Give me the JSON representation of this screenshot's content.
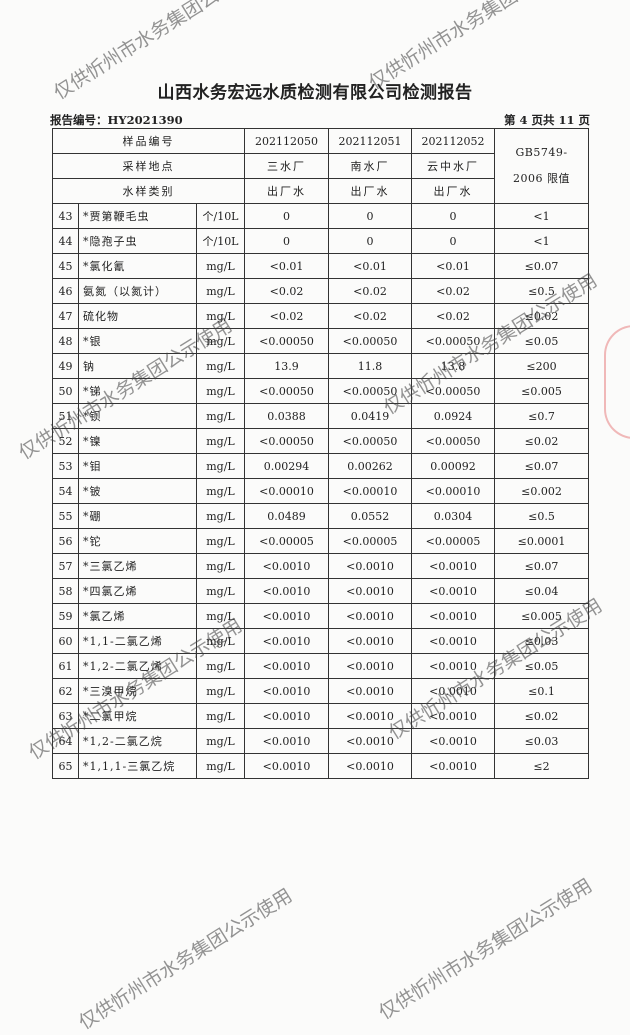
{
  "title": "山西水务宏远水质检测有限公司检测报告",
  "report_number": "报告编号：HY2021390",
  "page_info": "第 4 页共 11 页",
  "watermark": "仅供忻州市水务集团公示使用",
  "header": {
    "sample_id_label": "样品编号",
    "location_label": "采样地点",
    "type_label": "水样类别",
    "standard_label": "GB5749-2006 限值",
    "samples": [
      {
        "id": "202112050",
        "location": "三水厂",
        "type": "出厂水"
      },
      {
        "id": "202112051",
        "location": "南水厂",
        "type": "出厂水"
      },
      {
        "id": "202112052",
        "location": "云中水厂",
        "type": "出厂水"
      }
    ]
  },
  "rows": [
    {
      "no": "43",
      "name": "*贾第鞭毛虫",
      "unit": "个/10L",
      "v1": "0",
      "v2": "0",
      "v3": "0",
      "limit": "<1"
    },
    {
      "no": "44",
      "name": "*隐孢子虫",
      "unit": "个/10L",
      "v1": "0",
      "v2": "0",
      "v3": "0",
      "limit": "<1"
    },
    {
      "no": "45",
      "name": "*氯化氰",
      "unit": "mg/L",
      "v1": "<0.01",
      "v2": "<0.01",
      "v3": "<0.01",
      "limit": "≤0.07"
    },
    {
      "no": "46",
      "name": "氨氮（以氮计）",
      "unit": "mg/L",
      "v1": "<0.02",
      "v2": "<0.02",
      "v3": "<0.02",
      "limit": "≤0.5"
    },
    {
      "no": "47",
      "name": "硫化物",
      "unit": "mg/L",
      "v1": "<0.02",
      "v2": "<0.02",
      "v3": "<0.02",
      "limit": "≤0.02"
    },
    {
      "no": "48",
      "name": "*银",
      "unit": "mg/L",
      "v1": "<0.00050",
      "v2": "<0.00050",
      "v3": "<0.00050",
      "limit": "≤0.05"
    },
    {
      "no": "49",
      "name": "钠",
      "unit": "mg/L",
      "v1": "13.9",
      "v2": "11.8",
      "v3": "13.8",
      "limit": "≤200"
    },
    {
      "no": "50",
      "name": "*锑",
      "unit": "mg/L",
      "v1": "<0.00050",
      "v2": "<0.00050",
      "v3": "<0.00050",
      "limit": "≤0.005"
    },
    {
      "no": "51",
      "name": "*钡",
      "unit": "mg/L",
      "v1": "0.0388",
      "v2": "0.0419",
      "v3": "0.0924",
      "limit": "≤0.7"
    },
    {
      "no": "52",
      "name": "*镍",
      "unit": "mg/L",
      "v1": "<0.00050",
      "v2": "<0.00050",
      "v3": "<0.00050",
      "limit": "≤0.02"
    },
    {
      "no": "53",
      "name": "*钼",
      "unit": "mg/L",
      "v1": "0.00294",
      "v2": "0.00262",
      "v3": "0.00092",
      "limit": "≤0.07"
    },
    {
      "no": "54",
      "name": "*铍",
      "unit": "mg/L",
      "v1": "<0.00010",
      "v2": "<0.00010",
      "v3": "<0.00010",
      "limit": "≤0.002"
    },
    {
      "no": "55",
      "name": "*硼",
      "unit": "mg/L",
      "v1": "0.0489",
      "v2": "0.0552",
      "v3": "0.0304",
      "limit": "≤0.5"
    },
    {
      "no": "56",
      "name": "*铊",
      "unit": "mg/L",
      "v1": "<0.00005",
      "v2": "<0.00005",
      "v3": "<0.00005",
      "limit": "≤0.0001"
    },
    {
      "no": "57",
      "name": "*三氯乙烯",
      "unit": "mg/L",
      "v1": "<0.0010",
      "v2": "<0.0010",
      "v3": "<0.0010",
      "limit": "≤0.07"
    },
    {
      "no": "58",
      "name": "*四氯乙烯",
      "unit": "mg/L",
      "v1": "<0.0010",
      "v2": "<0.0010",
      "v3": "<0.0010",
      "limit": "≤0.04"
    },
    {
      "no": "59",
      "name": "*氯乙烯",
      "unit": "mg/L",
      "v1": "<0.0010",
      "v2": "<0.0010",
      "v3": "<0.0010",
      "limit": "≤0.005"
    },
    {
      "no": "60",
      "name": "*1,1-二氯乙烯",
      "unit": "mg/L",
      "v1": "<0.0010",
      "v2": "<0.0010",
      "v3": "<0.0010",
      "limit": "≤0.03"
    },
    {
      "no": "61",
      "name": "*1,2-二氯乙烯",
      "unit": "mg/L",
      "v1": "<0.0010",
      "v2": "<0.0010",
      "v3": "<0.0010",
      "limit": "≤0.05"
    },
    {
      "no": "62",
      "name": "*三溴甲烷",
      "unit": "mg/L",
      "v1": "<0.0010",
      "v2": "<0.0010",
      "v3": "<0.0010",
      "limit": "≤0.1"
    },
    {
      "no": "63",
      "name": "*二氯甲烷",
      "unit": "mg/L",
      "v1": "<0.0010",
      "v2": "<0.0010",
      "v3": "<0.0010",
      "limit": "≤0.02"
    },
    {
      "no": "64",
      "name": "*1,2-二氯乙烷",
      "unit": "mg/L",
      "v1": "<0.0010",
      "v2": "<0.0010",
      "v3": "<0.0010",
      "limit": "≤0.03"
    },
    {
      "no": "65",
      "name": "*1,1,1-三氯乙烷",
      "unit": "mg/L",
      "v1": "<0.0010",
      "v2": "<0.0010",
      "v3": "<0.0010",
      "limit": "≤2"
    }
  ]
}
